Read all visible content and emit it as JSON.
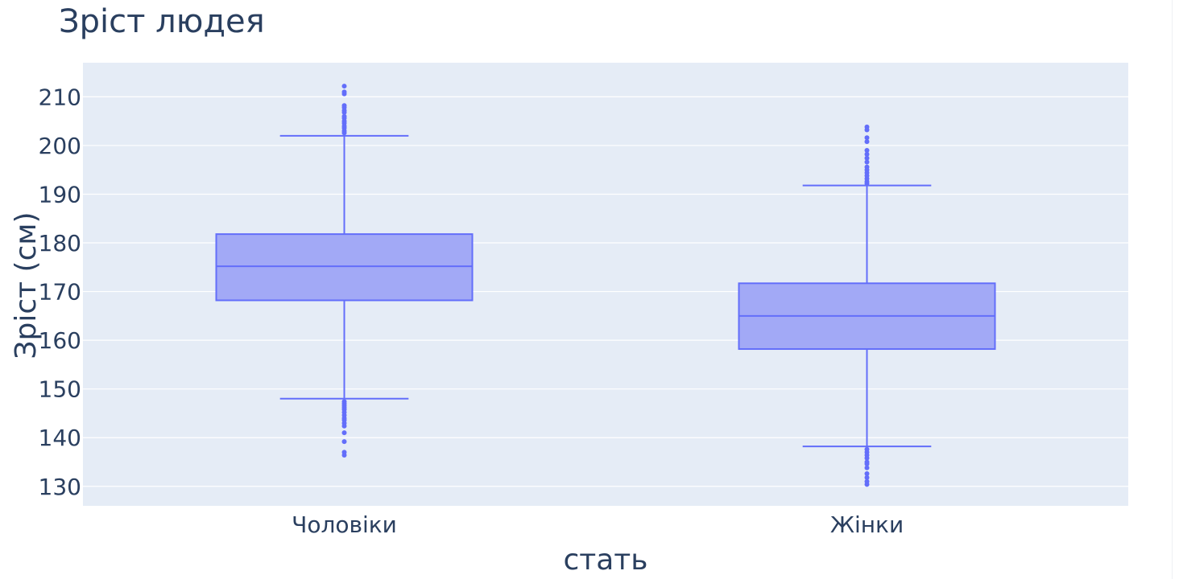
{
  "chart_data": {
    "type": "box",
    "title": "Зріст людея",
    "xlabel": "стать",
    "ylabel": "Зріст (см)",
    "categories": [
      "Чоловіки",
      "Жінки"
    ],
    "ylim": [
      126,
      217
    ],
    "yticks": [
      130,
      140,
      150,
      160,
      170,
      180,
      190,
      200,
      210
    ],
    "grid": true,
    "boxes": [
      {
        "category": "Чоловіки",
        "q1": 168.2,
        "median": 175.2,
        "q3": 181.8,
        "lower_fence": 148,
        "upper_fence": 202,
        "outliers": [
          212.2,
          211.0,
          210.6,
          208.2,
          207.8,
          207.2,
          206.8,
          206.0,
          205.6,
          205.0,
          204.6,
          204.0,
          203.6,
          203.0,
          202.6,
          147.4,
          147.0,
          146.6,
          146.2,
          145.8,
          145.2,
          144.6,
          144.0,
          143.6,
          143.0,
          142.4,
          141.0,
          139.2,
          137.0,
          136.4
        ]
      },
      {
        "category": "Жінки",
        "q1": 158.2,
        "median": 165.0,
        "q3": 171.7,
        "lower_fence": 138.2,
        "upper_fence": 191.8,
        "outliers": [
          203.8,
          203.2,
          201.6,
          200.8,
          199.0,
          198.2,
          197.4,
          196.6,
          195.6,
          195.0,
          194.4,
          193.8,
          193.2,
          192.6,
          192.2,
          137.6,
          137.0,
          136.4,
          135.8,
          135.0,
          134.6,
          133.8,
          132.6,
          131.8,
          131.0,
          130.4
        ]
      }
    ],
    "colors": {
      "box_fill": "#a2a9f6",
      "box_line": "#636efa",
      "plot_bg": "#e5ecf6",
      "grid": "#ffffff",
      "text": "#2a3f5f"
    }
  }
}
